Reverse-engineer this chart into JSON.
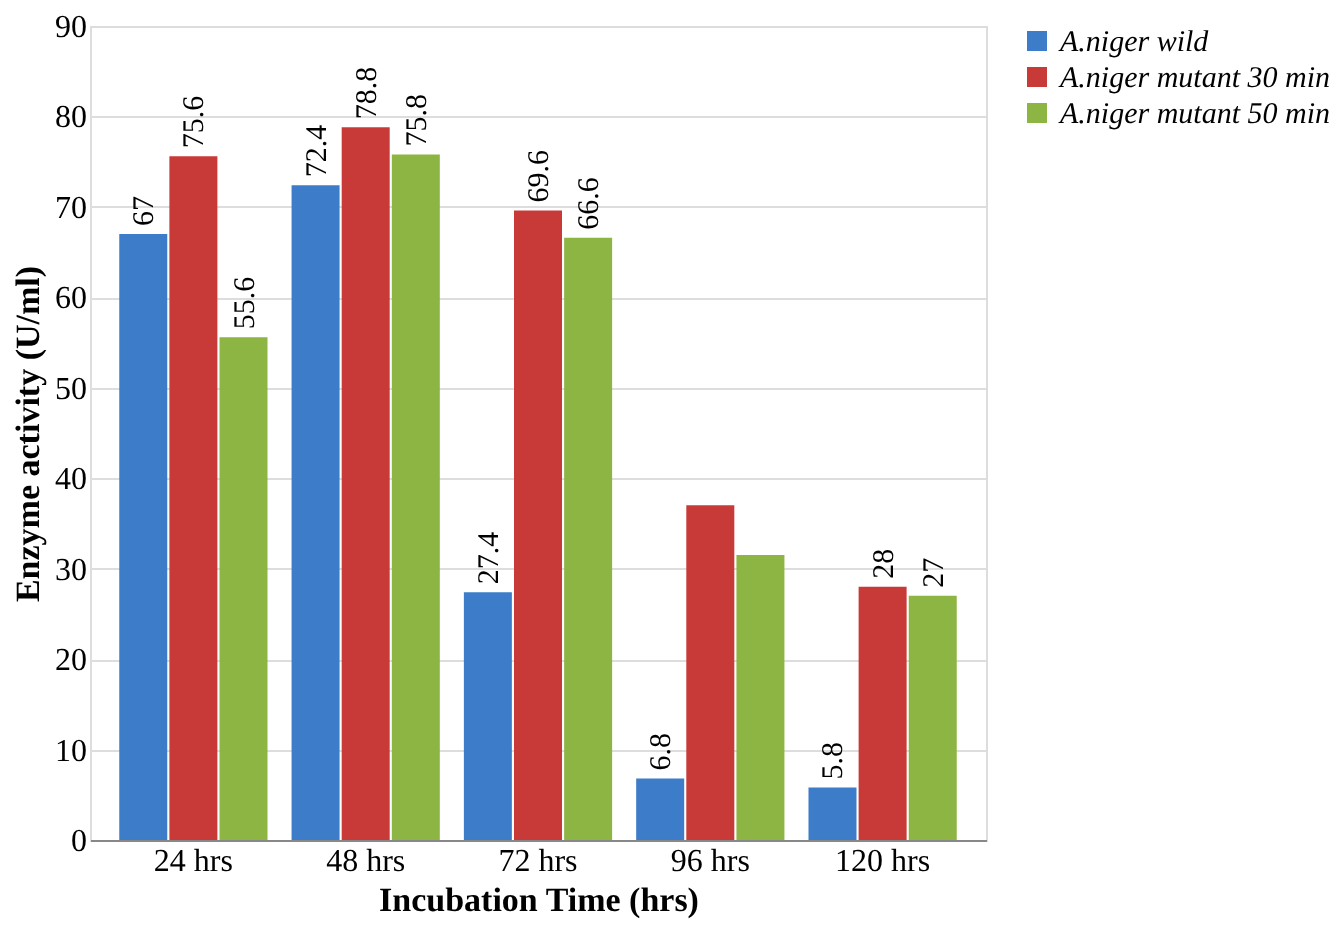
{
  "chart_data": {
    "type": "bar",
    "xlabel": "Incubation Time (hrs)",
    "ylabel": "Enzyme activity (U/ml)",
    "categories": [
      "24 hrs",
      "48 hrs",
      "72 hrs",
      "96 hrs",
      "120 hrs"
    ],
    "series": [
      {
        "name": "A.niger wild",
        "color": "#3d7cc9",
        "values": [
          67,
          72.4,
          27.4,
          6.8,
          5.8
        ],
        "value_labels": [
          "67",
          "72.4",
          "27.4",
          "6.8",
          "5.8"
        ]
      },
      {
        "name": "A.niger mutant 30 min",
        "color": "#c83a38",
        "values": [
          75.6,
          78.8,
          69.6,
          37,
          28
        ],
        "value_labels": [
          "75.6",
          "78.8",
          "69.6",
          null,
          "28"
        ]
      },
      {
        "name": "A.niger mutant 50 min",
        "color": "#8db543",
        "values": [
          55.6,
          75.8,
          66.6,
          31.5,
          27
        ],
        "value_labels": [
          "55.6",
          "75.8",
          "66.6",
          null,
          "27"
        ]
      }
    ],
    "ylim": [
      0,
      90
    ],
    "yticks": [
      0,
      10,
      20,
      30,
      40,
      50,
      60,
      70,
      80,
      90
    ],
    "grid": "y",
    "legend": "right"
  }
}
